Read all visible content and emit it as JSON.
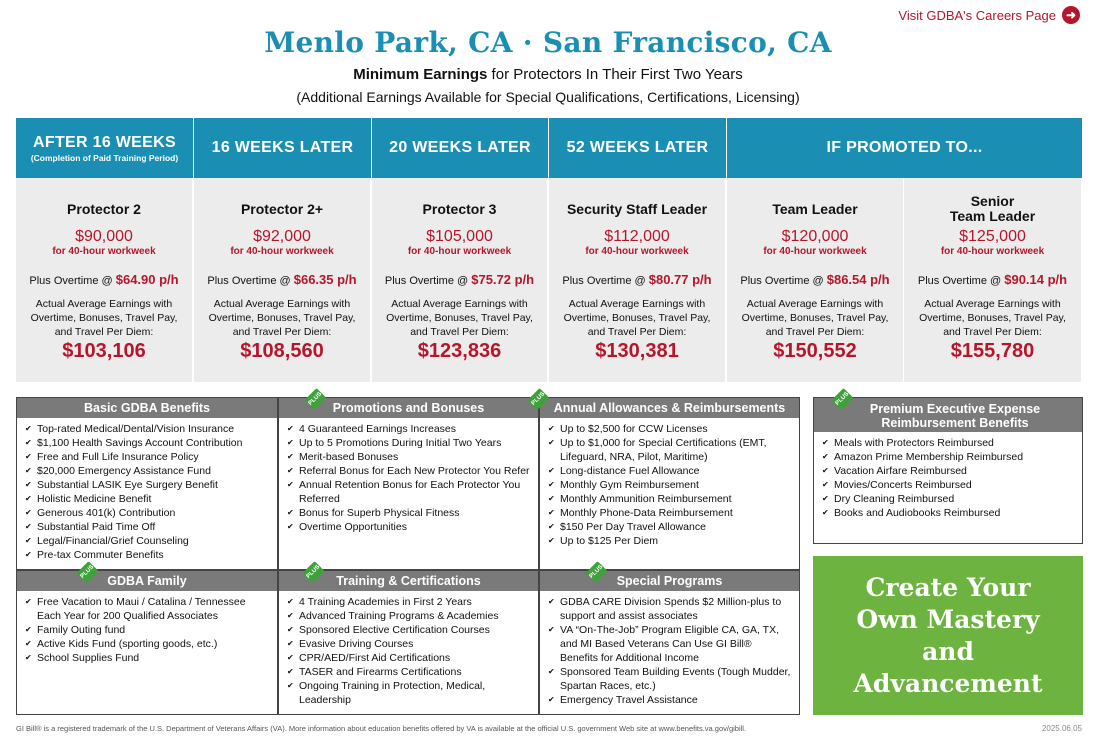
{
  "careers_link": {
    "label": "Visit GDBA's Careers Page",
    "icon": "arrow-right-circle-icon"
  },
  "title": "Menlo Park, CA · San Francisco, CA",
  "subtitle_bold": "Minimum Earnings",
  "subtitle_rest": " for Protectors In Their First Two Years",
  "subtitle2": "(Additional Earnings Available for Special Qualifications, Certifications, Licensing)",
  "columns": [
    {
      "header": "AFTER 16 WEEKS",
      "subheader": "(Completion of Paid Training Period)",
      "role": "Protector 2",
      "salary": "$90,000",
      "wk": "for 40-hour workweek",
      "ot_label": "Plus Overtime @ ",
      "ot_rate": "$64.90 p/h",
      "avg": "Actual Average Earnings with Overtime, Bonuses, Travel Pay, and Travel Per Diem:",
      "total": "$103,106"
    },
    {
      "header": "16 WEEKS LATER",
      "subheader": "",
      "role": "Protector 2+",
      "salary": "$92,000",
      "wk": "for 40-hour workweek",
      "ot_label": "Plus Overtime @ ",
      "ot_rate": "$66.35 p/h",
      "avg": "Actual Average Earnings with Overtime, Bonuses, Travel Pay, and Travel Per Diem:",
      "total": "$108,560"
    },
    {
      "header": "20 WEEKS LATER",
      "subheader": "",
      "role": "Protector 3",
      "salary": "$105,000",
      "wk": "for 40-hour workweek",
      "ot_label": "Plus Overtime @ ",
      "ot_rate": "$75.72 p/h",
      "avg": "Actual Average Earnings with Overtime, Bonuses, Travel Pay, and Travel Per Diem:",
      "total": "$123,836"
    },
    {
      "header": "52 WEEKS LATER",
      "subheader": "",
      "role": "Security Staff Leader",
      "salary": "$112,000",
      "wk": "for 40-hour workweek",
      "ot_label": "Plus Overtime @ ",
      "ot_rate": "$80.77 p/h",
      "avg": "Actual Average Earnings with Overtime, Bonuses, Travel Pay, and Travel Per Diem:",
      "total": "$130,381"
    },
    {
      "header": "",
      "subheader": "",
      "role": "Team Leader",
      "salary": "$120,000",
      "wk": "for 40-hour workweek",
      "ot_label": "Plus Overtime @ ",
      "ot_rate": "$86.54 p/h",
      "avg": "Actual Average Earnings with Overtime, Bonuses, Travel Pay, and Travel Per Diem:",
      "total": "$150,552"
    },
    {
      "header": "",
      "subheader": "",
      "role": "Senior\nTeam Leader",
      "salary": "$125,000",
      "wk": "for 40-hour workweek",
      "ot_label": "Plus Overtime @ ",
      "ot_rate": "$90.14 p/h",
      "avg": "Actual Average Earnings with Overtime, Bonuses, Travel Pay, and Travel Per Diem:",
      "total": "$155,780"
    }
  ],
  "promoted_header": "IF PROMOTED TO...",
  "plus_badge": "PLUS",
  "boxes": [
    {
      "title": "Basic GDBA Benefits",
      "plus": false,
      "items": [
        "Top-rated Medical/Dental/Vision Insurance",
        "$1,100 Health Savings Account Contribution",
        "Free and Full Life Insurance Policy",
        "$20,000 Emergency Assistance Fund",
        "Substantial LASIK Eye Surgery Benefit",
        "Holistic Medicine Benefit",
        "Generous 401(k) Contribution",
        "Substantial Paid Time Off",
        "Legal/Financial/Grief Counseling",
        "Pre-tax Commuter Benefits"
      ]
    },
    {
      "title": "Promotions and Bonuses",
      "plus": true,
      "items": [
        "4 Guaranteed Earnings Increases",
        "Up to 5 Promotions During Initial Two Years",
        "Merit-based Bonuses",
        "Referral Bonus for Each New Protector You Refer",
        "Annual Retention Bonus for Each Protector You Referred",
        "Bonus for Superb Physical Fitness",
        "Overtime Opportunities"
      ]
    },
    {
      "title": "Annual Allowances & Reimbursements",
      "plus": true,
      "items": [
        "Up to $2,500 for CCW Licenses",
        "Up to $1,000 for Special Certifications (EMT, Lifeguard, NRA, Pilot, Maritime)",
        "Long-distance Fuel Allowance",
        "Monthly Gym Reimbursement",
        "Monthly Ammunition Reimbursement",
        "Monthly Phone-Data Reimbursement",
        "$150 Per Day Travel Allowance",
        "Up to $125 Per Diem"
      ]
    },
    {
      "title": "Premium Executive Expense Reimbursement Benefits",
      "plus": true,
      "items": [
        "Meals with Protectors Reimbursed",
        "Amazon Prime Membership Reimbursed",
        "Vacation Airfare Reimbursed",
        "Movies/Concerts Reimbursed",
        "Dry Cleaning Reimbursed",
        "Books and Audiobooks Reimbursed"
      ]
    },
    {
      "title": "GDBA Family",
      "plus": true,
      "items": [
        "Free Vacation to Maui / Catalina / Tennessee Each Year for 200 Qualified Associates",
        "Family Outing fund",
        "Active Kids Fund (sporting goods, etc.)",
        "School Supplies Fund"
      ]
    },
    {
      "title": "Training & Certifications",
      "plus": true,
      "items": [
        "4 Training Academies in First 2 Years",
        "Advanced Training Programs & Academies",
        "Sponsored Elective Certification Courses",
        "Evasive Driving Courses",
        "CPR/AED/First Aid Certifications",
        "TASER and Firearms Certifications",
        "Ongoing Training in Protection, Medical, Leadership"
      ]
    },
    {
      "title": "Special Programs",
      "plus": true,
      "items": [
        "GDBA CARE Division Spends $2 Million-plus to support and assist associates",
        "VA “On-The-Job” Program Eligible CA, GA, TX, and MI Based Veterans Can Use GI Bill® Benefits for Additional Income",
        "Sponsored Team Building Events (Tough Mudder, Spartan Races, etc.)",
        "Emergency Travel Assistance"
      ]
    }
  ],
  "cta": "Create Your Own Mastery and Advancement",
  "footnote": "GI Bill® is a registered trademark of the U.S. Department of Veterans Affairs (VA). More information about education benefits offered by VA is available at the official U.S. government Web site at www.benefits.va.gov/gibill.",
  "date": "2025.06.05"
}
